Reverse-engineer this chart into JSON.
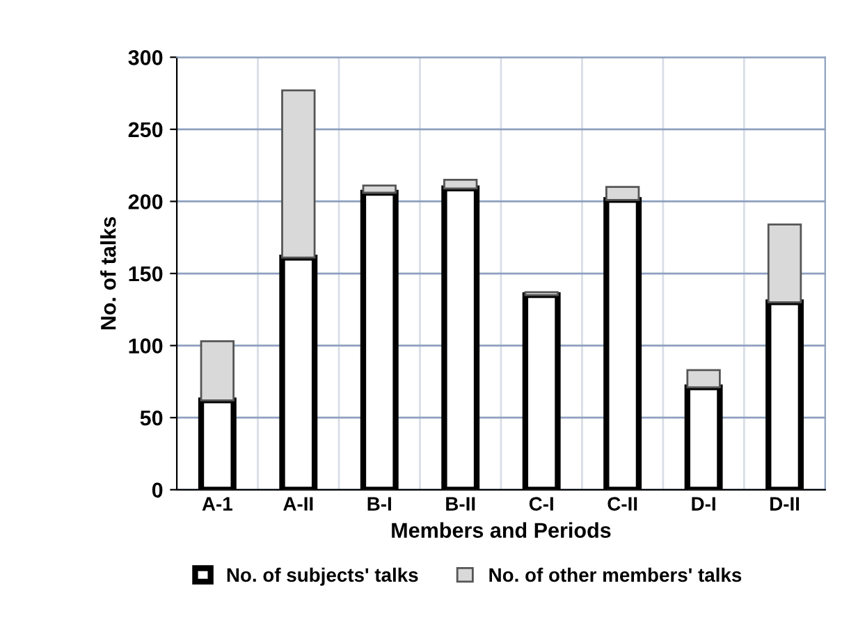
{
  "chart_data": {
    "type": "bar",
    "stacked": true,
    "xlabel": "Members and Periods",
    "ylabel": "No. of talks",
    "categories": [
      "A-1",
      "A-II",
      "B-I",
      "B-II",
      "C-I",
      "C-II",
      "D-I",
      "D-II"
    ],
    "series": [
      {
        "name": "No. of subjects' talks",
        "color": "#ffffff",
        "values": [
          62,
          161,
          206,
          209,
          135,
          201,
          71,
          130
        ]
      },
      {
        "name": "No. of other members' talks",
        "color": "#d9d9d9",
        "values": [
          41,
          116,
          5,
          6,
          2,
          9,
          12,
          54
        ]
      }
    ],
    "ylim": [
      0,
      300
    ],
    "yticks": [
      0,
      50,
      100,
      150,
      200,
      250,
      300
    ],
    "grid": true,
    "legend": "bottom"
  }
}
